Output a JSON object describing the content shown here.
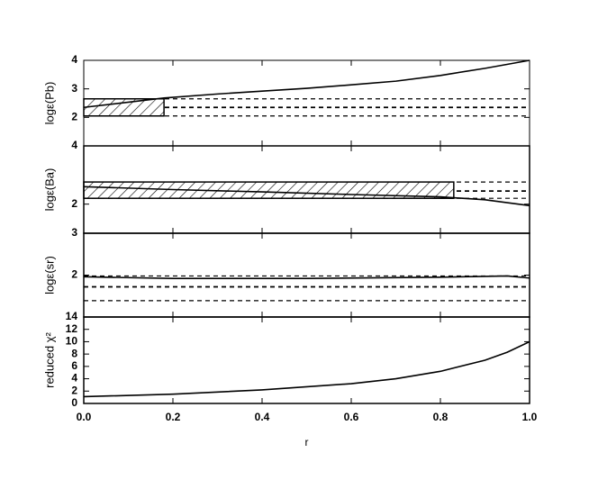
{
  "chart_data": [
    {
      "type": "line",
      "ylabel": "logε(Pb)",
      "x": [
        0,
        0.18,
        0.3,
        0.4,
        0.5,
        0.6,
        0.7,
        0.8,
        0.9,
        1.0
      ],
      "values": [
        2.35,
        2.68,
        2.82,
        2.92,
        3.02,
        3.14,
        3.27,
        3.47,
        3.72,
        4.0
      ],
      "xlim": [
        0,
        1
      ],
      "ylim": [
        1,
        4
      ],
      "yticks": [
        2,
        3,
        4
      ],
      "color": "#000000",
      "observation": {
        "xlim": [
          0,
          0.18
        ],
        "center": 2.35,
        "lower": 2.05,
        "upper": 2.65
      }
    },
    {
      "type": "line",
      "ylabel": "logε(Ba)",
      "x": [
        0,
        0.2,
        0.4,
        0.6,
        0.8,
        0.9,
        1.0
      ],
      "values": [
        2.6,
        2.5,
        2.42,
        2.33,
        2.25,
        2.15,
        1.95
      ],
      "xlim": [
        0,
        1
      ],
      "ylim": [
        1,
        4
      ],
      "yticks": [
        2,
        4
      ],
      "color": "#000000",
      "observation": {
        "xlim": [
          0,
          0.83
        ],
        "center": 2.45,
        "lower": 2.2,
        "upper": 2.76
      }
    },
    {
      "type": "line",
      "ylabel": "logε(sr)",
      "x": [
        0,
        0.2,
        0.5,
        0.8,
        0.95,
        1.0
      ],
      "values": [
        1.96,
        1.92,
        1.92,
        1.95,
        1.98,
        1.93
      ],
      "xlim": [
        0,
        1
      ],
      "ylim": [
        1,
        3
      ],
      "yticks": [
        2,
        3
      ],
      "color": "#000000",
      "observation": {
        "center": 1.72,
        "lower": 1.39,
        "upper": 1.98
      }
    },
    {
      "type": "line",
      "ylabel": "reduced χ²",
      "xlabel": "r",
      "x": [
        0,
        0.2,
        0.4,
        0.6,
        0.7,
        0.8,
        0.9,
        0.95,
        1.0
      ],
      "values": [
        1.1,
        1.5,
        2.2,
        3.2,
        4.0,
        5.2,
        7.0,
        8.3,
        10.0
      ],
      "xlim": [
        0,
        1
      ],
      "ylim": [
        0,
        14
      ],
      "yticks": [
        0,
        2,
        4,
        6,
        8,
        10,
        12,
        14
      ],
      "xticks": [
        {
          "value": 0,
          "label": "0.0"
        },
        {
          "value": 0.2,
          "label": "0.2"
        },
        {
          "value": 0.4,
          "label": "0.4"
        },
        {
          "value": 0.6,
          "label": "0.6"
        },
        {
          "value": 0.8,
          "label": "0.8"
        },
        {
          "value": 1,
          "label": "1.0"
        }
      ],
      "color": "#000000"
    }
  ]
}
